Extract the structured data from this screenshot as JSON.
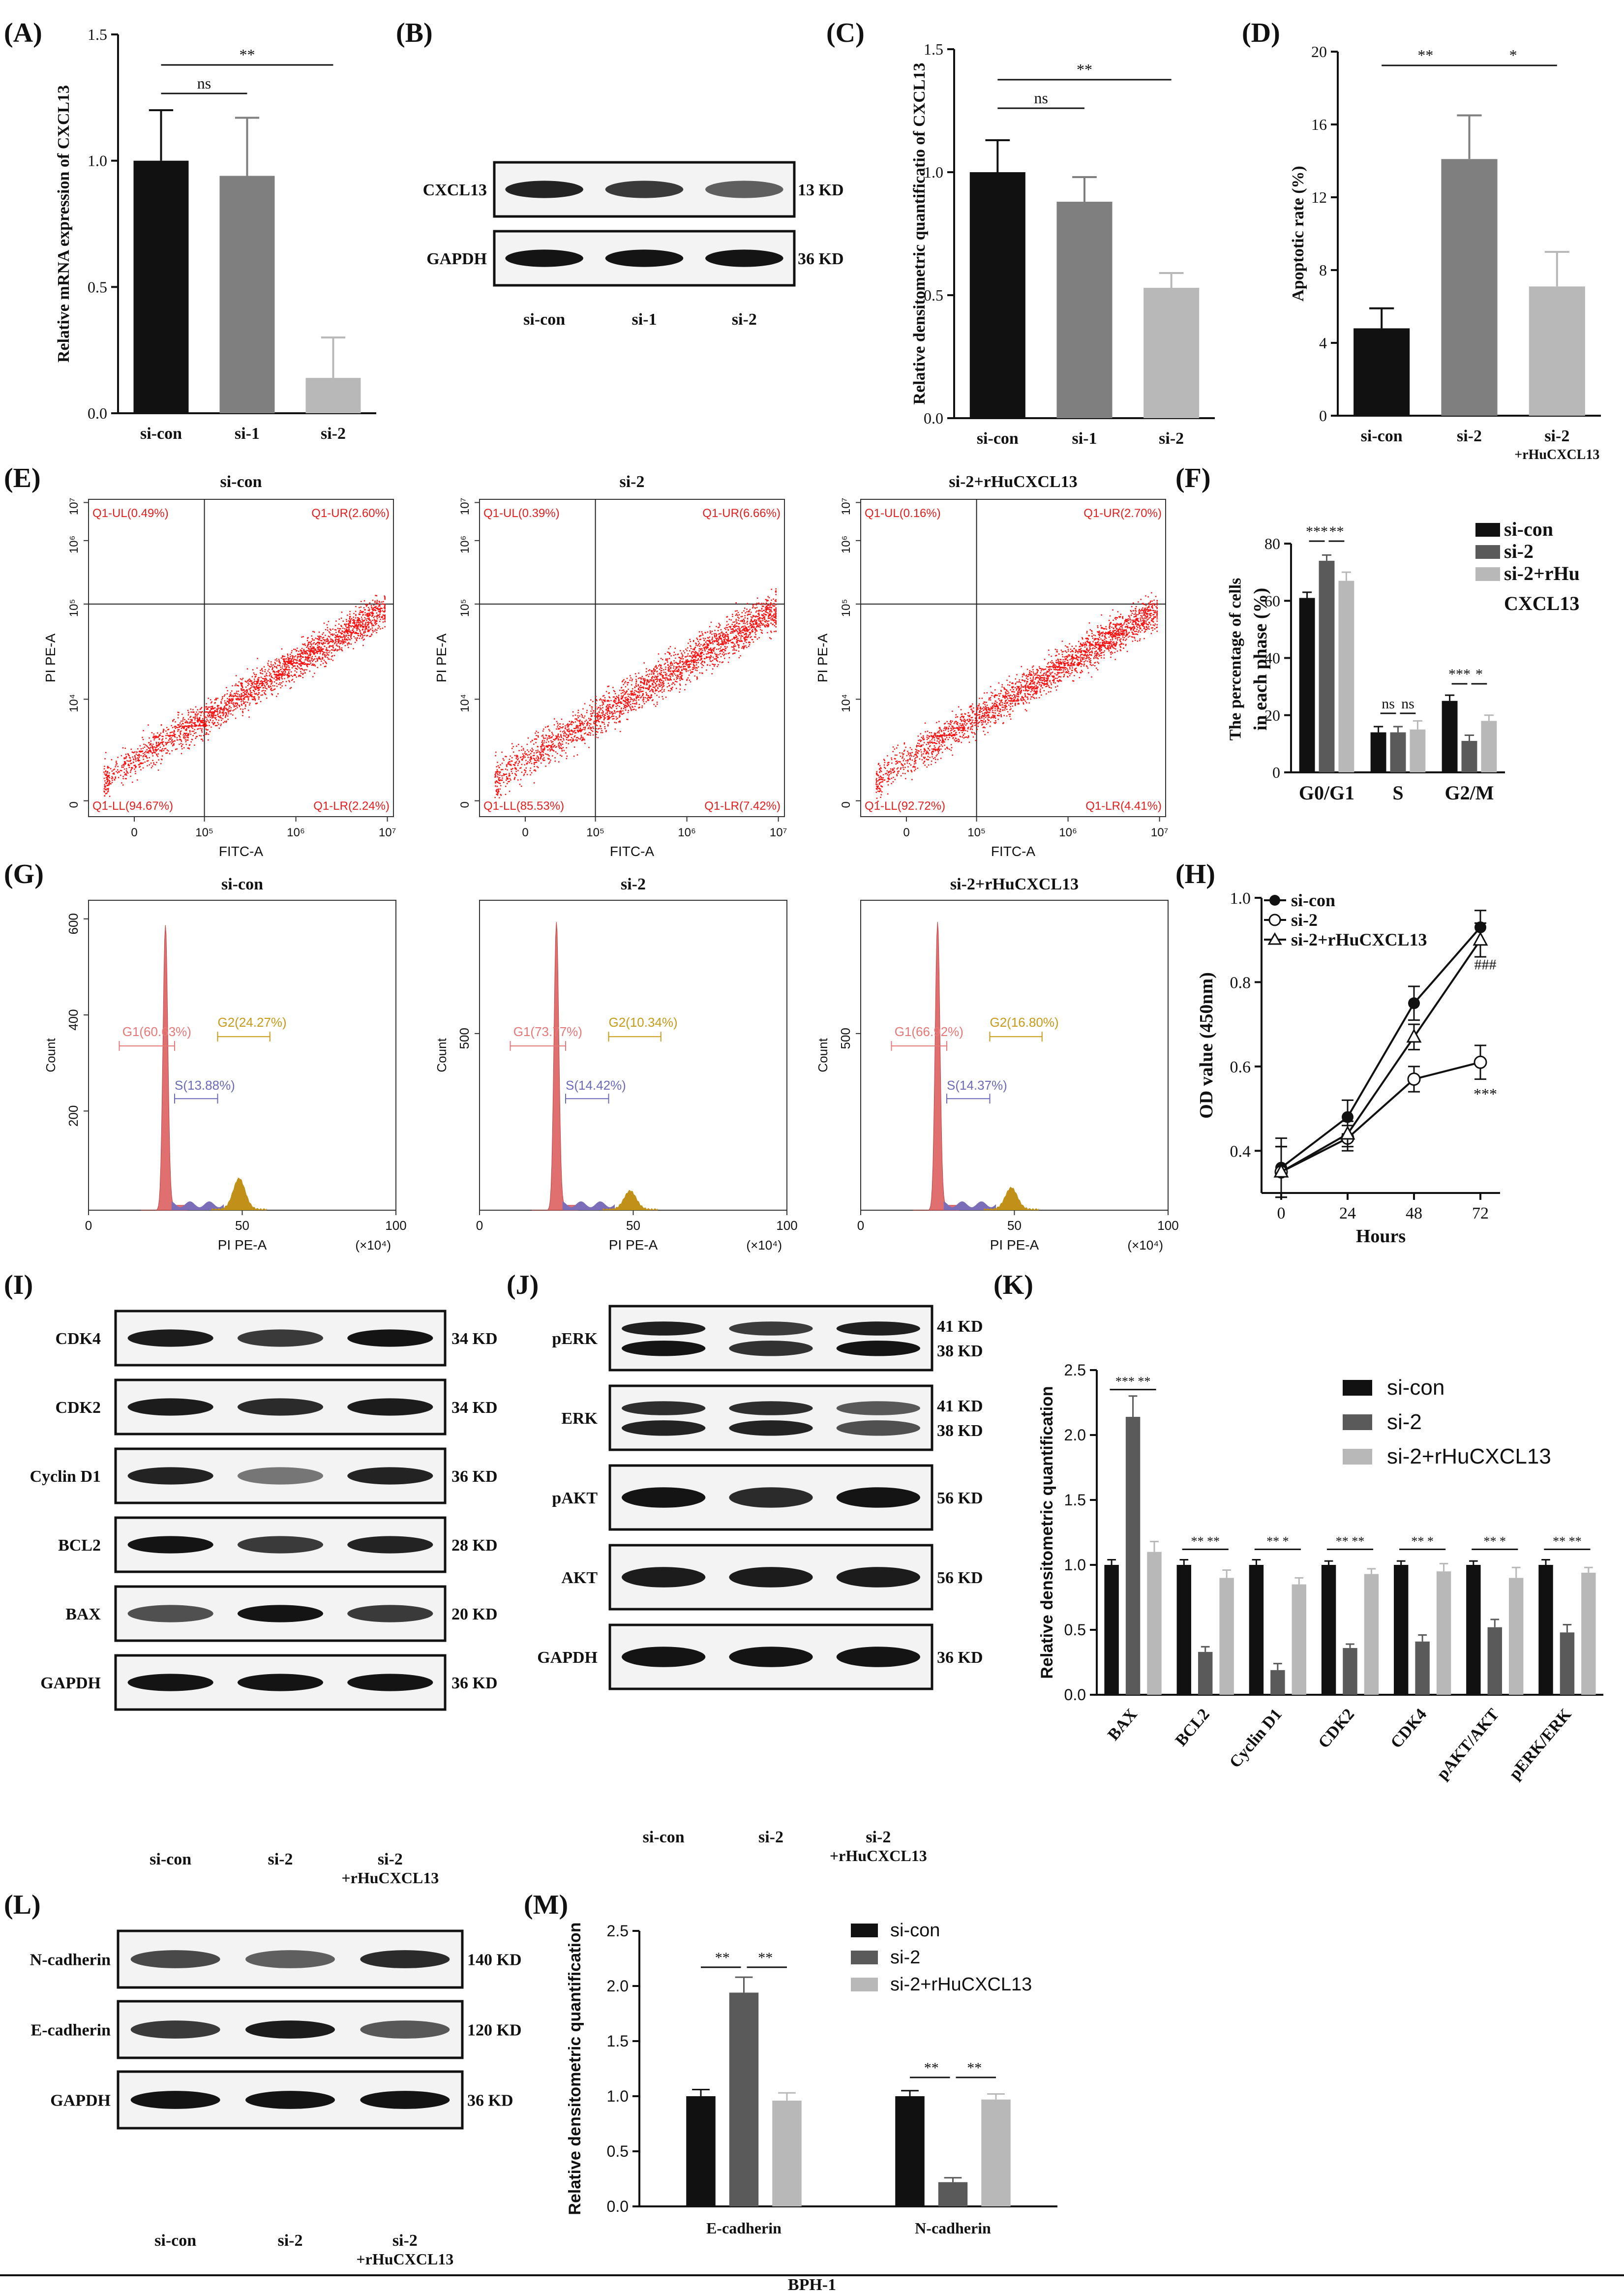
{
  "figure": {
    "cell_line": "BPH-1",
    "panel_labels": [
      "(A)",
      "(B)",
      "(C)",
      "(D)",
      "(E)",
      "(F)",
      "(G)",
      "(H)",
      "(I)",
      "(J)",
      "(K)",
      "(L)",
      "(M)"
    ]
  },
  "colors": {
    "black": "#111111",
    "dark_gray": "#5a5a5a",
    "gray": "#7f7f7f",
    "light_gray": "#b8b8b8",
    "flow_red": "#ff1010",
    "hist_red": "#e07070",
    "hist_purple": "#7b6db8",
    "hist_gold": "#c09018",
    "gate_pink": "#e87878",
    "gate_gold": "#c89a1a",
    "gate_blue": "#6a6ab8"
  },
  "chart_data": [
    {
      "id": "A",
      "type": "bar",
      "ylabel": "Relative mRNA expression of CXCL13",
      "ylim": [
        0,
        1.5
      ],
      "yticks": [
        0.0,
        0.5,
        1.0,
        1.5
      ],
      "categories": [
        "si-con",
        "si-1",
        "si-2"
      ],
      "values": [
        1.0,
        0.94,
        0.14
      ],
      "errors": [
        0.2,
        0.23,
        0.16
      ],
      "colors": [
        "#111111",
        "#7f7f7f",
        "#b8b8b8"
      ],
      "significance": [
        {
          "from": 0,
          "to": 1,
          "label": "ns"
        },
        {
          "from": 0,
          "to": 2,
          "label": "**"
        }
      ]
    },
    {
      "id": "C",
      "type": "bar",
      "ylabel": "Relative densitometric quantificatio of CXCL13",
      "ylim": [
        0,
        1.5
      ],
      "yticks": [
        0.0,
        0.5,
        1.0,
        1.5
      ],
      "categories": [
        "si-con",
        "si-1",
        "si-2"
      ],
      "values": [
        1.0,
        0.88,
        0.53
      ],
      "errors": [
        0.13,
        0.1,
        0.06
      ],
      "colors": [
        "#111111",
        "#7f7f7f",
        "#b8b8b8"
      ],
      "significance": [
        {
          "from": 0,
          "to": 1,
          "label": "ns"
        },
        {
          "from": 0,
          "to": 2,
          "label": "**"
        }
      ]
    },
    {
      "id": "D",
      "type": "bar",
      "ylabel": "Apoptotic rate (%)",
      "ylim": [
        0,
        20
      ],
      "yticks": [
        0,
        4,
        8,
        12,
        16,
        20
      ],
      "categories": [
        "si-con",
        "si-2",
        "si-2\n+rHuCXCL13"
      ],
      "values": [
        4.8,
        14.1,
        7.1
      ],
      "errors": [
        1.1,
        2.4,
        1.9
      ],
      "colors": [
        "#111111",
        "#7f7f7f",
        "#b8b8b8"
      ],
      "significance": [
        {
          "from": 0,
          "to": 1,
          "label": "**"
        },
        {
          "from": 1,
          "to": 2,
          "label": "*"
        }
      ]
    },
    {
      "id": "F",
      "type": "bar",
      "ylabel": "The percentage of cells in each phase (%)",
      "ylim": [
        0,
        80
      ],
      "yticks": [
        0,
        20,
        40,
        60,
        80
      ],
      "categories": [
        "G0/G1",
        "S",
        "G2/M"
      ],
      "series": [
        {
          "name": "si-con",
          "values": [
            61,
            14,
            25
          ],
          "errors": [
            2,
            2,
            2
          ],
          "color": "#111111"
        },
        {
          "name": "si-2",
          "values": [
            74,
            14,
            11
          ],
          "errors": [
            2,
            2,
            2
          ],
          "color": "#5a5a5a"
        },
        {
          "name": "si-2+rHu CXCL13",
          "values": [
            67,
            15,
            18
          ],
          "errors": [
            3,
            3,
            2
          ],
          "color": "#b8b8b8"
        }
      ],
      "significance": [
        {
          "group": 0,
          "from": 0,
          "to": 1,
          "label": "***"
        },
        {
          "group": 0,
          "from": 1,
          "to": 2,
          "label": "**"
        },
        {
          "group": 1,
          "from": 0,
          "to": 1,
          "label": "ns"
        },
        {
          "group": 1,
          "from": 1,
          "to": 2,
          "label": "ns"
        },
        {
          "group": 2,
          "from": 0,
          "to": 1,
          "label": "***"
        },
        {
          "group": 2,
          "from": 1,
          "to": 2,
          "label": "*"
        }
      ],
      "legend": [
        "si-con",
        "si-2",
        "si-2+rHu",
        "CXCL13"
      ]
    },
    {
      "id": "H",
      "type": "line",
      "xlabel": "Hours",
      "ylabel": "OD value (450nm)",
      "xlim": [
        0,
        72
      ],
      "ylim": [
        0.3,
        1.0
      ],
      "xticks": [
        0,
        24,
        48,
        72
      ],
      "yticks": [
        0.4,
        0.6,
        0.8,
        1.0
      ],
      "x": [
        0,
        24,
        48,
        72
      ],
      "series": [
        {
          "name": "si-con",
          "values": [
            0.36,
            0.48,
            0.75,
            0.93
          ],
          "errors": [
            0.07,
            0.04,
            0.04,
            0.04
          ],
          "marker": "filled-circle"
        },
        {
          "name": "si-2",
          "values": [
            0.35,
            0.43,
            0.57,
            0.61
          ],
          "errors": [
            0.06,
            0.03,
            0.03,
            0.04
          ],
          "marker": "open-circle"
        },
        {
          "name": "si-2+rHuCXCL13",
          "values": [
            0.35,
            0.44,
            0.67,
            0.9
          ],
          "errors": [
            0.06,
            0.03,
            0.03,
            0.04
          ],
          "marker": "open-triangle"
        }
      ],
      "annotations": [
        "###",
        "***"
      ]
    },
    {
      "id": "K",
      "type": "bar",
      "ylabel": "Relative densitometric quantification",
      "ylim": [
        0,
        2.5
      ],
      "yticks": [
        0.0,
        0.5,
        1.0,
        1.5,
        2.0,
        2.5
      ],
      "categories": [
        "BAX",
        "BCL2",
        "Cyclin D1",
        "CDK2",
        "CDK4",
        "pAKT/AKT",
        "pERK/ERK"
      ],
      "series": [
        {
          "name": "si-con",
          "values": [
            1.0,
            1.0,
            1.0,
            1.0,
            1.0,
            1.0,
            1.0
          ],
          "errors": [
            0.04,
            0.04,
            0.04,
            0.03,
            0.03,
            0.03,
            0.04
          ],
          "color": "#111111"
        },
        {
          "name": "si-2",
          "values": [
            2.14,
            0.33,
            0.19,
            0.36,
            0.41,
            0.52,
            0.48
          ],
          "errors": [
            0.16,
            0.04,
            0.05,
            0.03,
            0.05,
            0.06,
            0.06
          ],
          "color": "#5a5a5a"
        },
        {
          "name": "si-2+rHuCXCL13",
          "values": [
            1.1,
            0.9,
            0.85,
            0.93,
            0.95,
            0.9,
            0.94
          ],
          "errors": [
            0.08,
            0.06,
            0.05,
            0.04,
            0.06,
            0.08,
            0.04
          ],
          "color": "#b8b8b8"
        }
      ],
      "sig_labels": [
        "*** **",
        "** **",
        "** *",
        "** **",
        "** *",
        "** *",
        "** **"
      ]
    },
    {
      "id": "M",
      "type": "bar",
      "ylabel": "Relative densitometric quantification",
      "ylim": [
        0,
        2.5
      ],
      "yticks": [
        0.0,
        0.5,
        1.0,
        1.5,
        2.0,
        2.5
      ],
      "categories": [
        "E-cadherin",
        "N-cadherin"
      ],
      "series": [
        {
          "name": "si-con",
          "values": [
            1.0,
            1.0
          ],
          "errors": [
            0.06,
            0.05
          ],
          "color": "#111111"
        },
        {
          "name": "si-2",
          "values": [
            1.94,
            0.22
          ],
          "errors": [
            0.14,
            0.04
          ],
          "color": "#5a5a5a"
        },
        {
          "name": "si-2+rHuCXCL13",
          "values": [
            0.96,
            0.97
          ],
          "errors": [
            0.07,
            0.05
          ],
          "color": "#b8b8b8"
        }
      ],
      "sig_labels": [
        [
          "**",
          "**"
        ],
        [
          "**",
          "**"
        ]
      ]
    }
  ],
  "blot_B": {
    "rows": [
      {
        "label": "CXCL13",
        "kd": "13 KD",
        "intensity": [
          0.9,
          0.75,
          0.5
        ]
      },
      {
        "label": "GAPDH",
        "kd": "36 KD",
        "intensity": [
          1,
          1,
          1
        ]
      }
    ],
    "lanes": [
      "si-con",
      "si-1",
      "si-2"
    ]
  },
  "blot_I": {
    "rows": [
      {
        "label": "CDK4",
        "kd": "34 KD",
        "intensity": [
          0.95,
          0.75,
          1.0
        ]
      },
      {
        "label": "CDK2",
        "kd": "34 KD",
        "intensity": [
          0.95,
          0.85,
          0.95
        ]
      },
      {
        "label": "Cyclin D1",
        "kd": "36 KD",
        "intensity": [
          0.9,
          0.35,
          0.9
        ]
      },
      {
        "label": "BCL2",
        "kd": "28 KD",
        "intensity": [
          1.0,
          0.75,
          0.9
        ]
      },
      {
        "label": "BAX",
        "kd": "20 KD",
        "intensity": [
          0.6,
          1.0,
          0.75
        ]
      },
      {
        "label": "GAPDH",
        "kd": "36 KD",
        "intensity": [
          1.0,
          1.0,
          1.0
        ]
      }
    ],
    "lanes": [
      "si-con",
      "si-2",
      "si-2\n+rHuCXCL13"
    ]
  },
  "blot_J": {
    "rows": [
      {
        "label": "pERK",
        "kd": "41 KD\n38 KD",
        "intensity": [
          1.0,
          0.8,
          1.0
        ],
        "double": true
      },
      {
        "label": "ERK",
        "kd": "41 KD\n38 KD",
        "intensity": [
          0.9,
          0.9,
          0.6
        ],
        "double": true
      },
      {
        "label": "pAKT",
        "kd": "56 KD",
        "intensity": [
          1.0,
          0.85,
          1.0
        ]
      },
      {
        "label": "AKT",
        "kd": "56 KD",
        "intensity": [
          0.95,
          0.95,
          0.95
        ]
      },
      {
        "label": "GAPDH",
        "kd": "36 KD",
        "intensity": [
          1.0,
          1.0,
          1.0
        ]
      }
    ],
    "lanes": [
      "si-con",
      "si-2",
      "si-2\n+rHuCXCL13"
    ]
  },
  "blot_L": {
    "rows": [
      {
        "label": "N-cadherin",
        "kd": "140 KD",
        "intensity": [
          0.65,
          0.5,
          0.85
        ]
      },
      {
        "label": "E-cadherin",
        "kd": "120 KD",
        "intensity": [
          0.75,
          0.95,
          0.55
        ]
      },
      {
        "label": "GAPDH",
        "kd": "36 KD",
        "intensity": [
          1.0,
          1.0,
          1.0
        ]
      }
    ],
    "lanes": [
      "si-con",
      "si-2",
      "si-2\n+rHuCXCL13"
    ]
  },
  "flow_E": {
    "xlabel": "FITC-A",
    "ylabel": "PI PE-A",
    "plots": [
      {
        "title": "si-con",
        "UL": "Q1-UL(0.49%)",
        "UR": "Q1-UR(2.60%)",
        "LL": "Q1-LL(94.67%)",
        "LR": "Q1-LR(2.24%)"
      },
      {
        "title": "si-2",
        "UL": "Q1-UL(0.39%)",
        "UR": "Q1-UR(6.66%)",
        "LL": "Q1-LL(85.53%)",
        "LR": "Q1-LR(7.42%)"
      },
      {
        "title": "si-2+rHuCXCL13",
        "UL": "Q1-UL(0.16%)",
        "UR": "Q1-UR(2.70%)",
        "LL": "Q1-LL(92.72%)",
        "LR": "Q1-LR(4.41%)"
      }
    ]
  },
  "hist_G": {
    "xlabel": "PI PE-A",
    "xunit": "(×10⁴)",
    "ylabel": "Count",
    "xticks": [
      "0",
      "50",
      "100"
    ],
    "plots": [
      {
        "title": "si-con",
        "G1": "G1(60.63%)",
        "G2": "G2(24.27%)",
        "S": "S(13.88%)",
        "yticks": [
          "200",
          "400",
          "600"
        ]
      },
      {
        "title": "si-2",
        "G1": "G1(73.77%)",
        "G2": "G2(10.34%)",
        "S": "S(14.42%)",
        "yticks": [
          "500"
        ]
      },
      {
        "title": "si-2+rHuCXCL13",
        "G1": "G1(66.92%)",
        "G2": "G2(16.80%)",
        "S": "S(14.37%)",
        "yticks": [
          "500"
        ]
      }
    ]
  }
}
